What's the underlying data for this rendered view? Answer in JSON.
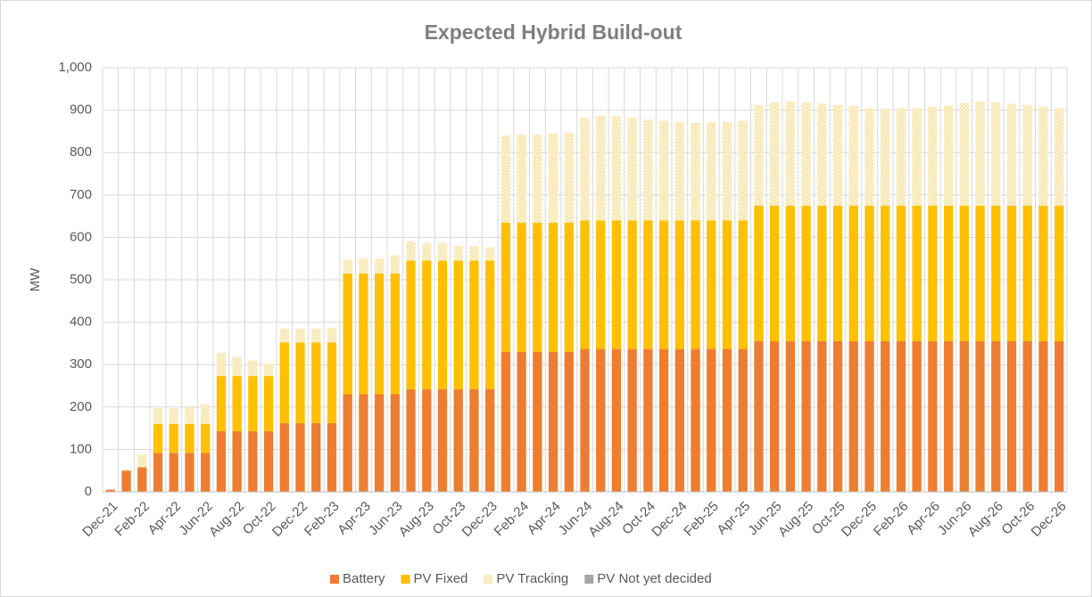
{
  "chart_data": {
    "type": "stacked_bar",
    "title": "Expected Hybrid  Build-out",
    "y_label": "MW",
    "categories": [
      "Dec-21",
      null,
      "Feb-22",
      null,
      "Apr-22",
      null,
      "Jun-22",
      null,
      "Aug-22",
      null,
      "Oct-22",
      null,
      "Dec-22",
      null,
      "Feb-23",
      null,
      "Apr-23",
      null,
      "Jun-23",
      null,
      "Aug-23",
      null,
      "Oct-23",
      null,
      "Dec-23",
      null,
      "Feb-24",
      null,
      "Apr-24",
      null,
      "Jun-24",
      null,
      "Aug-24",
      null,
      "Oct-24",
      null,
      "Dec-24",
      null,
      "Feb-25",
      null,
      "Apr-25",
      null,
      "Jun-25",
      null,
      "Aug-25",
      null,
      "Oct-25",
      null,
      "Dec-25",
      null,
      "Feb-26",
      null,
      "Apr-26",
      null,
      "Jun-26",
      null,
      "Aug-26",
      null,
      "Oct-26",
      null,
      "Dec-26"
    ],
    "series": [
      {
        "name": "Battery",
        "color": "#ed7d31",
        "values": [
          5,
          50,
          58,
          92,
          92,
          92,
          92,
          143,
          143,
          143,
          143,
          162,
          162,
          162,
          162,
          230,
          230,
          230,
          230,
          242,
          242,
          242,
          242,
          242,
          242,
          330,
          330,
          330,
          330,
          330,
          337,
          337,
          337,
          337,
          337,
          337,
          337,
          337,
          337,
          337,
          337,
          355,
          355,
          355,
          355,
          355,
          355,
          355,
          355,
          355,
          355,
          355,
          355,
          355,
          355,
          355,
          355,
          355,
          355,
          355,
          355
        ]
      },
      {
        "name": "PV Fixed",
        "color": "#ffc000",
        "values": [
          0,
          0,
          0,
          68,
          68,
          68,
          68,
          130,
          130,
          130,
          130,
          190,
          190,
          190,
          190,
          285,
          285,
          285,
          285,
          303,
          303,
          303,
          303,
          303,
          303,
          305,
          305,
          305,
          305,
          305,
          303,
          303,
          303,
          303,
          303,
          303,
          303,
          303,
          303,
          303,
          303,
          320,
          320,
          320,
          320,
          320,
          320,
          320,
          320,
          320,
          320,
          320,
          320,
          320,
          320,
          320,
          320,
          320,
          320,
          320,
          320
        ]
      },
      {
        "name": "PV Tracking",
        "color": "#fbe3a2",
        "pattern": "hatch",
        "values": [
          0,
          3,
          30,
          37,
          37,
          40,
          47,
          55,
          45,
          37,
          29,
          33,
          33,
          33,
          35,
          32,
          35,
          35,
          43,
          45,
          42,
          42,
          35,
          35,
          32,
          205,
          207,
          207,
          210,
          212,
          242,
          247,
          245,
          242,
          238,
          235,
          232,
          230,
          232,
          232,
          235,
          237,
          243,
          245,
          243,
          240,
          237,
          235,
          230,
          228,
          230,
          230,
          233,
          235,
          242,
          245,
          243,
          240,
          237,
          233,
          230
        ]
      },
      {
        "name": "PV Not yet decided",
        "color": "#a5a5a5",
        "values": [
          0,
          0,
          0,
          0,
          0,
          0,
          0,
          0,
          0,
          0,
          0,
          0,
          0,
          0,
          0,
          0,
          0,
          0,
          0,
          0,
          0,
          0,
          0,
          0,
          0,
          0,
          0,
          0,
          0,
          0,
          0,
          0,
          0,
          0,
          0,
          0,
          0,
          0,
          0,
          0,
          0,
          0,
          0,
          0,
          0,
          0,
          0,
          0,
          0,
          0,
          0,
          0,
          0,
          0,
          0,
          0,
          0,
          0,
          0,
          0,
          0
        ]
      }
    ],
    "ylim": [
      0,
      1000
    ],
    "yticks": [
      0,
      100,
      200,
      300,
      400,
      500,
      600,
      700,
      800,
      900,
      {
        "value": 1000,
        "label": "1,000"
      }
    ],
    "grid": true,
    "legend": "bottom"
  }
}
